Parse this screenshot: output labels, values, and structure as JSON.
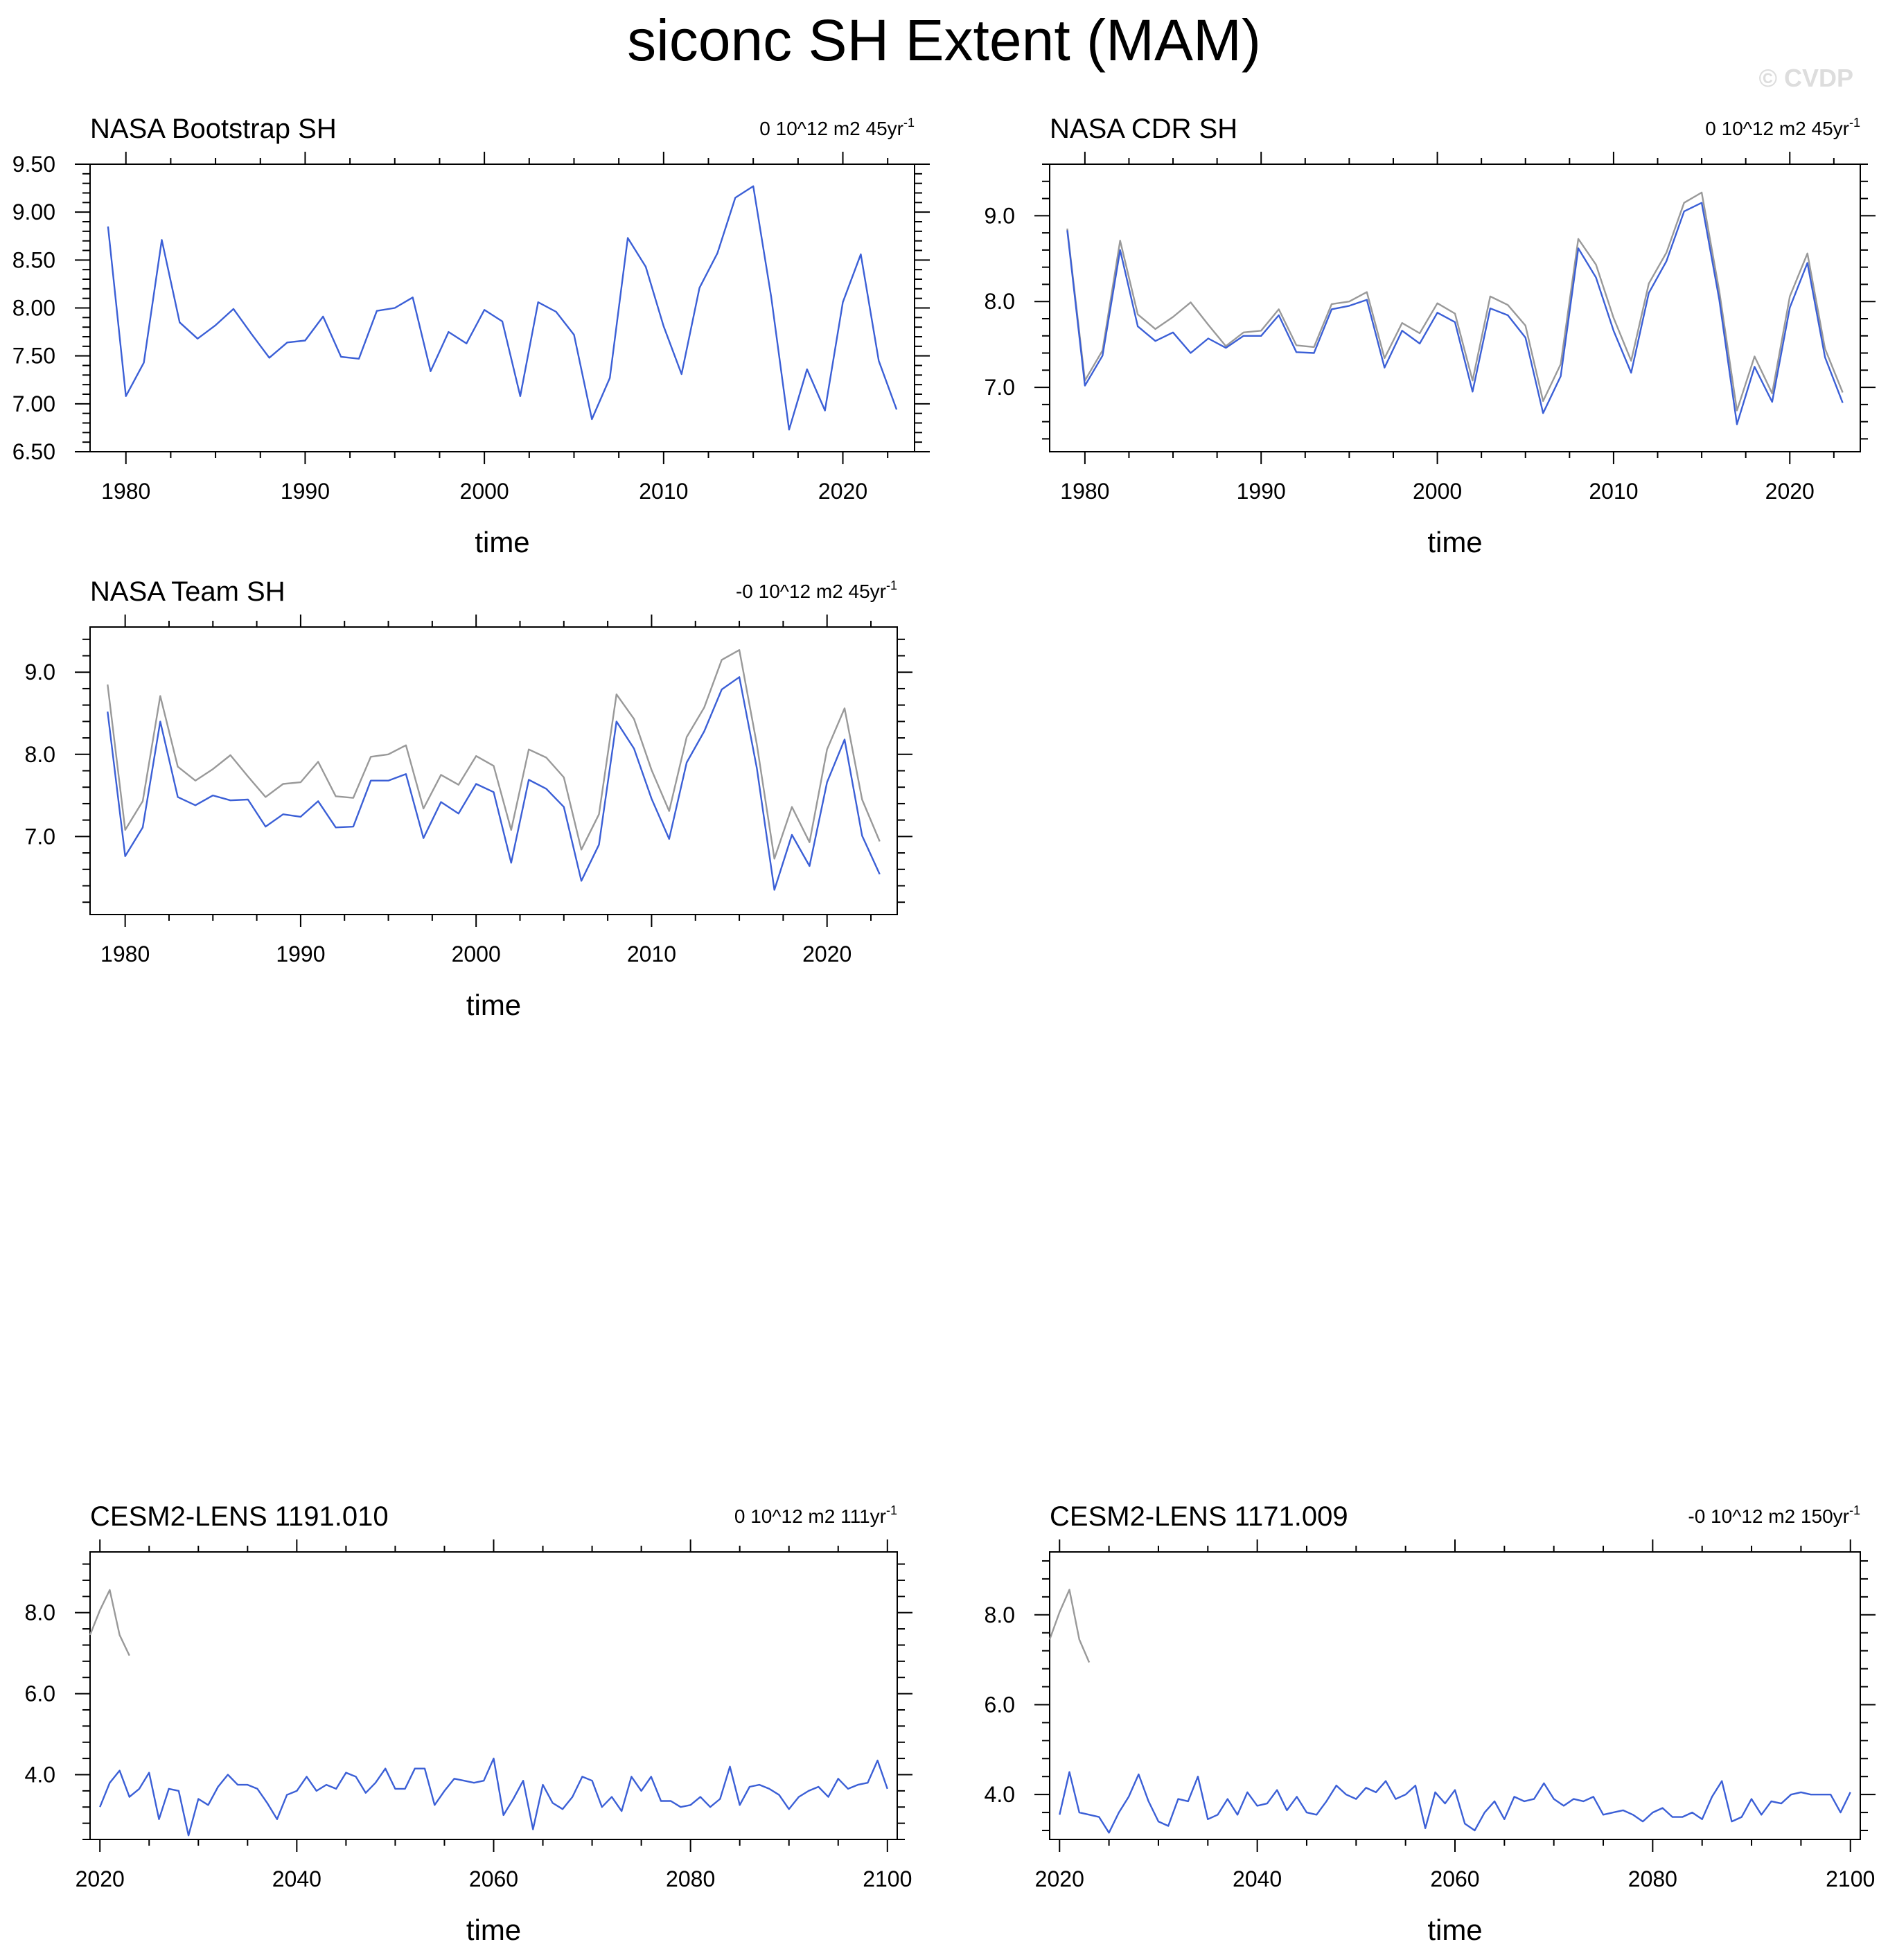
{
  "title": "siconc SH Extent (MAM)",
  "watermark": "© CVDP",
  "colors": {
    "series": "#3b5fd6",
    "reference": "#999999",
    "axis": "#000000"
  },
  "chart_data": [
    {
      "type": "line",
      "title": "NASA Bootstrap SH",
      "trend_label": "0 10^12 m2 45yr",
      "trend_exponent": "-1",
      "xlabel": "time",
      "xlim": [
        1978,
        2024
      ],
      "ylim": [
        6.5,
        9.5
      ],
      "x_ticks": [
        1980,
        1990,
        2000,
        2010,
        2020
      ],
      "y_ticks": [
        6.5,
        7.0,
        7.5,
        8.0,
        8.5,
        9.0,
        9.5
      ],
      "y_tick_labels": [
        "6.50",
        "7.00",
        "7.50",
        "8.00",
        "8.50",
        "9.00",
        "9.50"
      ],
      "x_start": 1979,
      "series": [
        {
          "values": [
            8.85,
            7.08,
            7.43,
            8.71,
            7.85,
            7.68,
            7.82,
            7.99,
            7.73,
            7.48,
            7.64,
            7.66,
            7.91,
            7.49,
            7.47,
            7.97,
            8.0,
            8.11,
            7.34,
            7.75,
            7.63,
            7.98,
            7.86,
            7.08,
            8.06,
            7.96,
            7.72,
            6.84,
            7.27,
            8.73,
            8.43,
            7.81,
            7.31,
            8.21,
            8.57,
            9.15,
            9.27,
            8.12,
            6.73,
            7.36,
            6.93,
            8.06,
            8.56,
            7.45,
            6.94
          ]
        }
      ]
    },
    {
      "type": "line",
      "title": "NASA CDR SH",
      "trend_label": "0 10^12 m2 45yr",
      "trend_exponent": "-1",
      "xlabel": "time",
      "xlim": [
        1978,
        2024
      ],
      "ylim": [
        6.25,
        9.6
      ],
      "x_ticks": [
        1980,
        1990,
        2000,
        2010,
        2020
      ],
      "y_ticks": [
        7.0,
        8.0,
        9.0
      ],
      "y_tick_labels": [
        "7.0",
        "8.0",
        "9.0"
      ],
      "x_start": 1979,
      "series": [
        {
          "role": "reference",
          "values": [
            8.85,
            7.08,
            7.43,
            8.71,
            7.85,
            7.68,
            7.82,
            7.99,
            7.73,
            7.48,
            7.64,
            7.66,
            7.91,
            7.49,
            7.47,
            7.97,
            8.0,
            8.11,
            7.34,
            7.75,
            7.63,
            7.98,
            7.86,
            7.08,
            8.06,
            7.96,
            7.72,
            6.84,
            7.27,
            8.73,
            8.43,
            7.81,
            7.31,
            8.21,
            8.57,
            9.15,
            9.27,
            8.12,
            6.73,
            7.36,
            6.93,
            8.06,
            8.56,
            7.45,
            6.94
          ]
        },
        {
          "role": "model",
          "values": [
            8.83,
            7.02,
            7.37,
            8.6,
            7.71,
            7.54,
            7.64,
            7.4,
            7.57,
            7.46,
            7.6,
            7.6,
            7.84,
            7.41,
            7.4,
            7.91,
            7.95,
            8.02,
            7.23,
            7.66,
            7.51,
            7.87,
            7.76,
            6.95,
            7.92,
            7.84,
            7.58,
            6.7,
            7.13,
            8.62,
            8.28,
            7.66,
            7.17,
            8.1,
            8.47,
            9.05,
            9.15,
            8.02,
            6.57,
            7.24,
            6.83,
            7.93,
            8.45,
            7.35,
            6.82
          ]
        }
      ]
    },
    {
      "type": "line",
      "title": "NASA Team SH",
      "trend_label": "-0 10^12 m2 45yr",
      "trend_exponent": "-1",
      "xlabel": "time",
      "xlim": [
        1978,
        2024
      ],
      "ylim": [
        6.05,
        9.55
      ],
      "x_ticks": [
        1980,
        1990,
        2000,
        2010,
        2020
      ],
      "y_ticks": [
        7.0,
        8.0,
        9.0
      ],
      "y_tick_labels": [
        "7.0",
        "8.0",
        "9.0"
      ],
      "x_start": 1979,
      "series": [
        {
          "role": "reference",
          "values": [
            8.85,
            7.08,
            7.43,
            8.71,
            7.85,
            7.68,
            7.82,
            7.99,
            7.73,
            7.48,
            7.64,
            7.66,
            7.91,
            7.49,
            7.47,
            7.97,
            8.0,
            8.11,
            7.34,
            7.75,
            7.63,
            7.98,
            7.86,
            7.08,
            8.06,
            7.96,
            7.72,
            6.84,
            7.27,
            8.73,
            8.43,
            7.81,
            7.31,
            8.21,
            8.57,
            9.15,
            9.27,
            8.12,
            6.73,
            7.36,
            6.93,
            8.06,
            8.56,
            7.45,
            6.94
          ]
        },
        {
          "role": "model",
          "values": [
            8.52,
            6.76,
            7.11,
            8.4,
            7.48,
            7.38,
            7.5,
            7.44,
            7.45,
            7.12,
            7.27,
            7.24,
            7.43,
            7.11,
            7.12,
            7.68,
            7.68,
            7.76,
            6.98,
            7.42,
            7.28,
            7.64,
            7.54,
            6.68,
            7.69,
            7.58,
            7.36,
            6.46,
            6.9,
            8.4,
            8.07,
            7.46,
            6.97,
            7.9,
            8.28,
            8.79,
            8.94,
            7.83,
            6.35,
            7.02,
            6.64,
            7.66,
            8.18,
            7.01,
            6.54
          ]
        }
      ]
    },
    {
      "type": "line",
      "title": "CESM2-LENS 1191.010",
      "trend_label": "0 10^12 m2 111yr",
      "trend_exponent": "-1",
      "xlabel": "time",
      "xlim": [
        2019,
        2101
      ],
      "ylim": [
        2.4,
        9.5
      ],
      "x_ticks": [
        2020,
        2040,
        2060,
        2080,
        2100
      ],
      "y_ticks": [
        4.0,
        6.0,
        8.0
      ],
      "y_tick_labels": [
        "4.0",
        "6.0",
        "8.0"
      ],
      "series": [
        {
          "role": "reference",
          "x_start": 2019,
          "values": [
            7.45,
            8.06,
            8.56,
            7.45,
            6.94
          ]
        },
        {
          "role": "model",
          "x_start": 2020,
          "values": [
            3.2,
            3.8,
            4.1,
            3.45,
            3.65,
            4.05,
            2.9,
            3.65,
            3.6,
            2.5,
            3.4,
            3.25,
            3.7,
            4.0,
            3.75,
            3.75,
            3.65,
            3.3,
            2.9,
            3.5,
            3.6,
            3.95,
            3.6,
            3.75,
            3.65,
            4.05,
            3.95,
            3.55,
            3.8,
            4.15,
            3.65,
            3.65,
            4.15,
            4.15,
            3.25,
            3.6,
            3.9,
            3.85,
            3.8,
            3.85,
            4.4,
            3.0,
            3.4,
            3.85,
            2.65,
            3.75,
            3.3,
            3.15,
            3.45,
            3.95,
            3.85,
            3.2,
            3.45,
            3.1,
            3.95,
            3.6,
            3.95,
            3.35,
            3.35,
            3.2,
            3.25,
            3.45,
            3.2,
            3.4,
            4.2,
            3.25,
            3.7,
            3.75,
            3.65,
            3.5,
            3.15,
            3.45,
            3.6,
            3.7,
            3.45,
            3.9,
            3.65,
            3.75,
            3.8,
            4.35,
            3.65
          ]
        }
      ]
    },
    {
      "type": "line",
      "title": "CESM2-LENS 1171.009",
      "trend_label": "-0 10^12 m2 150yr",
      "trend_exponent": "-1",
      "xlabel": "time",
      "xlim": [
        2019,
        2101
      ],
      "ylim": [
        3.0,
        9.4
      ],
      "x_ticks": [
        2020,
        2040,
        2060,
        2080,
        2100
      ],
      "y_ticks": [
        4.0,
        6.0,
        8.0
      ],
      "y_tick_labels": [
        "4.0",
        "6.0",
        "8.0"
      ],
      "series": [
        {
          "role": "reference",
          "x_start": 2019,
          "values": [
            7.45,
            8.06,
            8.56,
            7.45,
            6.94
          ]
        },
        {
          "role": "model",
          "x_start": 2020,
          "values": [
            3.55,
            4.5,
            3.6,
            3.55,
            3.5,
            3.15,
            3.6,
            3.95,
            4.45,
            3.85,
            3.4,
            3.3,
            3.9,
            3.85,
            4.4,
            3.45,
            3.55,
            3.9,
            3.55,
            4.05,
            3.75,
            3.8,
            4.1,
            3.65,
            3.95,
            3.6,
            3.55,
            3.85,
            4.2,
            4.0,
            3.9,
            4.15,
            4.05,
            4.3,
            3.9,
            4.0,
            4.2,
            3.25,
            4.05,
            3.8,
            4.1,
            3.35,
            3.2,
            3.6,
            3.85,
            3.45,
            3.95,
            3.85,
            3.9,
            4.25,
            3.9,
            3.75,
            3.9,
            3.85,
            3.95,
            3.55,
            3.6,
            3.65,
            3.55,
            3.4,
            3.6,
            3.7,
            3.5,
            3.5,
            3.6,
            3.45,
            3.95,
            4.3,
            3.4,
            3.5,
            3.9,
            3.55,
            3.85,
            3.8,
            4.0,
            4.05,
            4.0,
            4.0,
            4.0,
            3.6,
            4.05
          ]
        }
      ]
    }
  ]
}
